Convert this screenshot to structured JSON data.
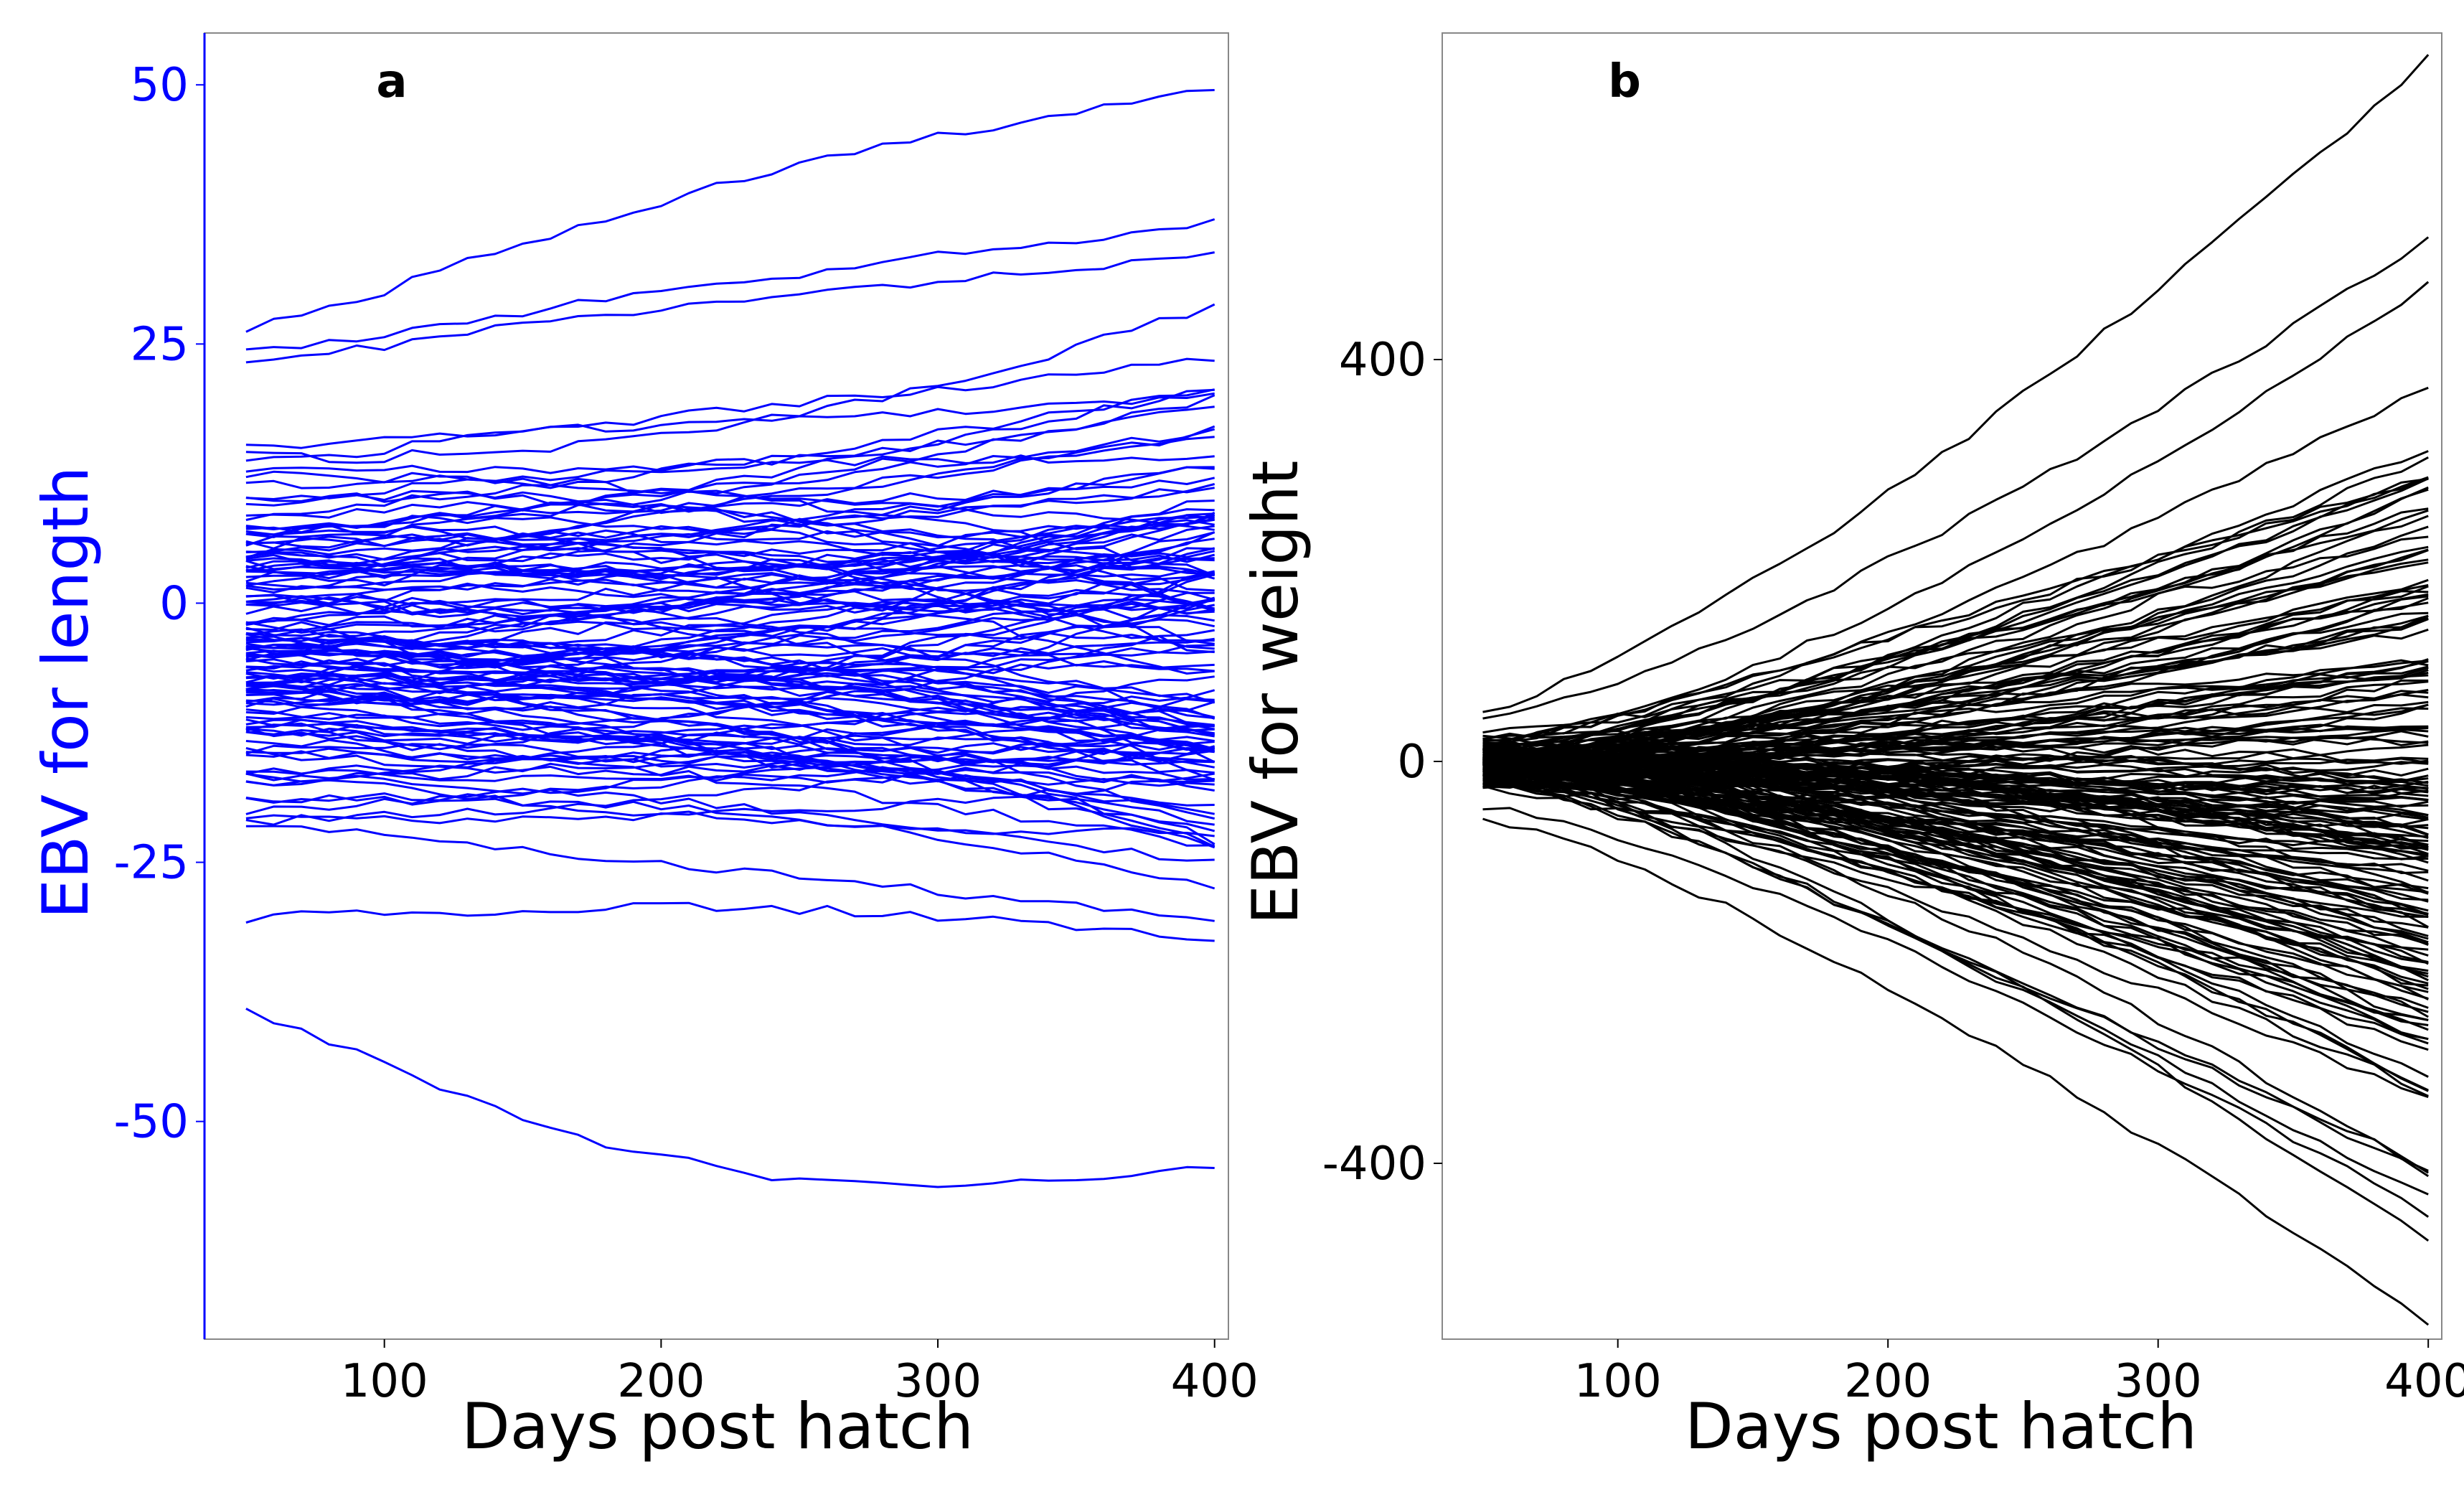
{
  "chart_data": [
    {
      "type": "line",
      "panel_label": "a",
      "title": "",
      "xlabel": "Days post hatch",
      "ylabel": "EBV for length",
      "xlim": [
        35,
        405
      ],
      "ylim": [
        -71,
        55
      ],
      "xticks": [
        100,
        200,
        300,
        400
      ],
      "yticks": [
        50,
        25,
        0,
        -25,
        -50
      ],
      "ytick_labels": [
        "50",
        "25",
        "0",
        "-25",
        "-50"
      ],
      "x": [
        50,
        60,
        70,
        80,
        90,
        100,
        110,
        120,
        130,
        140,
        150,
        160,
        170,
        180,
        190,
        200,
        210,
        220,
        230,
        240,
        250,
        260,
        270,
        280,
        290,
        300,
        310,
        320,
        330,
        340,
        350,
        360,
        370,
        380,
        390,
        400
      ],
      "series_count": 130,
      "line_color": "#0000ff",
      "axis_label_color": "#0000ff",
      "notable_series": [
        {
          "name": "highest",
          "start": 26.5,
          "end": 49.5
        },
        {
          "name": "lowest",
          "start": -39.5,
          "end": -54
        },
        {
          "name": "second-lowest",
          "start": -30.5,
          "end": -32
        },
        {
          "name": "near-highest-1",
          "start": 24.5,
          "end": 36.5
        },
        {
          "name": "near-highest-2",
          "start": 23.5,
          "end": 33
        }
      ],
      "spread_at_start": [
        -39.5,
        26.5
      ],
      "spread_at_end": [
        -54,
        49.5
      ],
      "grid": false,
      "legend": "none"
    },
    {
      "type": "line",
      "panel_label": "b",
      "title": "",
      "xlabel": "Days post hatch",
      "ylabel": "EBV for weight",
      "xlim": [
        35,
        405
      ],
      "ylim": [
        -575,
        725
      ],
      "xticks": [
        100,
        200,
        300,
        400
      ],
      "yticks": [
        400,
        0,
        -400
      ],
      "ytick_labels": [
        "400",
        "0",
        "-400"
      ],
      "x": [
        50,
        60,
        70,
        80,
        90,
        100,
        110,
        120,
        130,
        140,
        150,
        160,
        170,
        180,
        190,
        200,
        210,
        220,
        230,
        240,
        250,
        260,
        270,
        280,
        290,
        300,
        310,
        320,
        330,
        340,
        350,
        360,
        370,
        380,
        390,
        400
      ],
      "series_count": 170,
      "line_color": "#000000",
      "axis_label_color": "#000000",
      "notable_series": [
        {
          "name": "highest",
          "start": 52,
          "end": 700
        },
        {
          "name": "lowest",
          "start": -58,
          "end": -560
        },
        {
          "name": "upper-2",
          "start": 42,
          "end": 520
        },
        {
          "name": "lower-2",
          "start": -45,
          "end": -450
        }
      ],
      "spread_at_start": [
        -58,
        52
      ],
      "spread_at_end": [
        -560,
        700
      ],
      "grid": false,
      "legend": "none"
    }
  ]
}
